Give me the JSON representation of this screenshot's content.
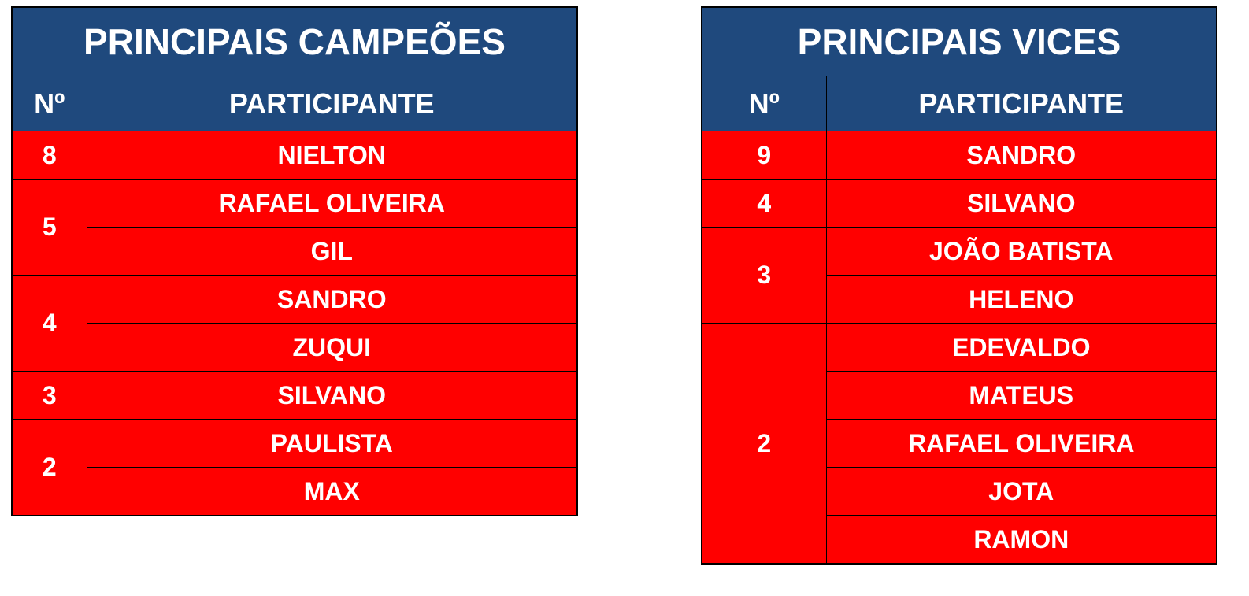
{
  "colors": {
    "header": "#1F497D",
    "row": "#FF0000",
    "text": "#FFFFFF"
  },
  "champions": {
    "title": "PRINCIPAIS CAMPEÕES",
    "col_num": "Nº",
    "col_name": "PARTICIPANTE",
    "groups": [
      {
        "count": "8",
        "names": [
          "NIELTON"
        ]
      },
      {
        "count": "5",
        "names": [
          "RAFAEL OLIVEIRA",
          "GIL"
        ]
      },
      {
        "count": "4",
        "names": [
          "SANDRO",
          "ZUQUI"
        ]
      },
      {
        "count": "3",
        "names": [
          "SILVANO"
        ]
      },
      {
        "count": "2",
        "names": [
          "PAULISTA",
          "MAX"
        ]
      }
    ]
  },
  "vices": {
    "title": "PRINCIPAIS VICES",
    "col_num": "Nº",
    "col_name": "PARTICIPANTE",
    "groups": [
      {
        "count": "9",
        "names": [
          "SANDRO"
        ]
      },
      {
        "count": "4",
        "names": [
          "SILVANO"
        ]
      },
      {
        "count": "3",
        "names": [
          "JOÃO BATISTA",
          "HELENO"
        ]
      },
      {
        "count": "2",
        "names": [
          "EDEVALDO",
          "MATEUS",
          "RAFAEL OLIVEIRA",
          "JOTA",
          "RAMON"
        ]
      }
    ]
  }
}
